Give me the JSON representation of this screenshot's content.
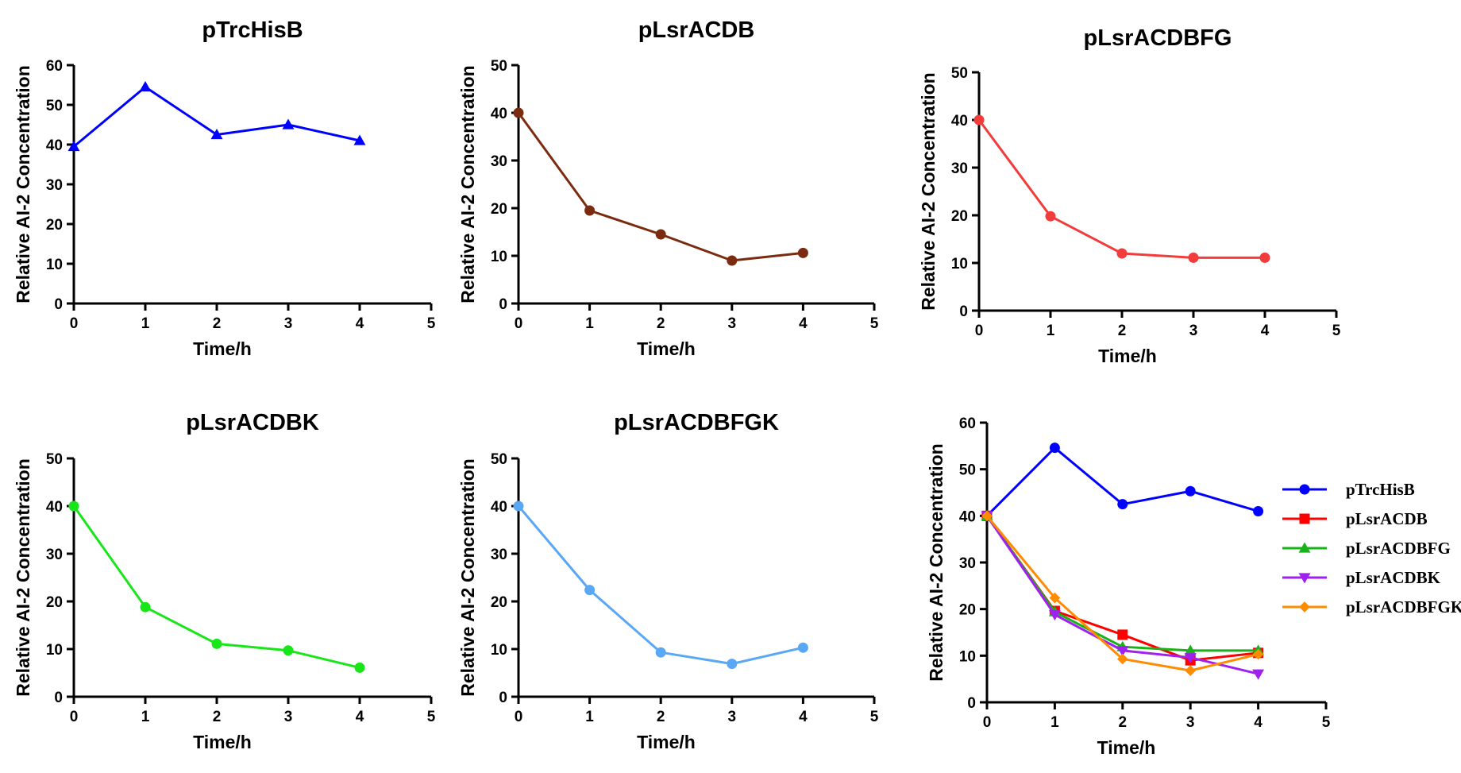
{
  "chart_data": [
    {
      "type": "line",
      "title": "pTrcHisB",
      "xlabel": "Time/h",
      "ylabel": "Relative AI-2 Concentration",
      "xlim": [
        0,
        5
      ],
      "ylim": [
        0,
        60
      ],
      "xticks": [
        "0",
        "1",
        "2",
        "3",
        "4",
        "5"
      ],
      "yticks": [
        "0",
        "10",
        "20",
        "30",
        "40",
        "50",
        "60"
      ],
      "grid": false,
      "series": [
        {
          "x": [
            0,
            1,
            2,
            3,
            4
          ],
          "y": [
            39.5,
            54.5,
            42.5,
            45.0,
            41.0
          ],
          "color": "#0000FF",
          "marker": "triangle-up"
        }
      ]
    },
    {
      "type": "line",
      "title": "pLsrACDB",
      "xlabel": "Time/h",
      "ylabel": "Relative AI-2 Concentration",
      "xlim": [
        0,
        5
      ],
      "ylim": [
        0,
        50
      ],
      "xticks": [
        "0",
        "1",
        "2",
        "3",
        "4",
        "5"
      ],
      "yticks": [
        "0",
        "10",
        "20",
        "30",
        "40",
        "50"
      ],
      "grid": false,
      "series": [
        {
          "x": [
            0,
            1,
            2,
            3,
            4
          ],
          "y": [
            40.0,
            19.5,
            14.5,
            9.0,
            10.6
          ],
          "color": "#7B2C10",
          "marker": "circle"
        }
      ]
    },
    {
      "type": "line",
      "title": "pLsrACDBFG",
      "xlabel": "Time/h",
      "ylabel": "Relative AI-2 Concentration",
      "xlim": [
        0,
        5
      ],
      "ylim": [
        0,
        50
      ],
      "xticks": [
        "0",
        "1",
        "2",
        "3",
        "4",
        "5"
      ],
      "yticks": [
        "0",
        "10",
        "20",
        "30",
        "40",
        "50"
      ],
      "grid": false,
      "series": [
        {
          "x": [
            0,
            1,
            2,
            3,
            4
          ],
          "y": [
            40.0,
            19.8,
            12.0,
            11.1,
            11.1
          ],
          "color": "#F23C3C",
          "marker": "circle"
        }
      ]
    },
    {
      "type": "line",
      "title": "pLsrACDBK",
      "xlabel": "Time/h",
      "ylabel": "Relative AI-2 Concentration",
      "xlim": [
        0,
        5
      ],
      "ylim": [
        0,
        50
      ],
      "xticks": [
        "0",
        "1",
        "2",
        "3",
        "4",
        "5"
      ],
      "yticks": [
        "0",
        "10",
        "20",
        "30",
        "40",
        "50"
      ],
      "grid": false,
      "series": [
        {
          "x": [
            0,
            1,
            2,
            3,
            4
          ],
          "y": [
            40.0,
            18.8,
            11.1,
            9.7,
            6.1
          ],
          "color": "#19E619",
          "marker": "circle"
        }
      ]
    },
    {
      "type": "line",
      "title": "pLsrACDBFGK",
      "xlabel": "Time/h",
      "ylabel": "Relative AI-2 Concentration",
      "xlim": [
        0,
        5
      ],
      "ylim": [
        0,
        50
      ],
      "xticks": [
        "0",
        "1",
        "2",
        "3",
        "4",
        "5"
      ],
      "yticks": [
        "0",
        "10",
        "20",
        "30",
        "40",
        "50"
      ],
      "grid": false,
      "series": [
        {
          "x": [
            0,
            1,
            2,
            3,
            4
          ],
          "y": [
            40.0,
            22.4,
            9.3,
            6.9,
            10.3
          ],
          "color": "#5AA7F5",
          "marker": "circle"
        }
      ]
    },
    {
      "type": "line",
      "title": "",
      "xlabel": "Time/h",
      "ylabel": "Relative AI-2 Concentration",
      "xlim": [
        0,
        5
      ],
      "ylim": [
        0,
        60
      ],
      "xticks": [
        "0",
        "1",
        "2",
        "3",
        "4",
        "5"
      ],
      "yticks": [
        "0",
        "10",
        "20",
        "30",
        "40",
        "50",
        "60"
      ],
      "grid": false,
      "legend": "right",
      "series": [
        {
          "name": "pTrcHisB",
          "x": [
            0,
            1,
            2,
            3,
            4
          ],
          "y": [
            40.0,
            54.6,
            42.5,
            45.3,
            41.0
          ],
          "color": "#0000FF",
          "marker": "circle"
        },
        {
          "name": "pLsrACDB",
          "x": [
            0,
            1,
            2,
            3,
            4
          ],
          "y": [
            40.0,
            19.6,
            14.5,
            9.0,
            10.6
          ],
          "color": "#FF0000",
          "marker": "square"
        },
        {
          "name": "pLsrACDBFG",
          "x": [
            0,
            1,
            2,
            3,
            4
          ],
          "y": [
            40.0,
            19.4,
            11.9,
            11.1,
            11.1
          ],
          "color": "#19B219",
          "marker": "triangle-up"
        },
        {
          "name": "pLsrACDBK",
          "x": [
            0,
            1,
            2,
            3,
            4
          ],
          "y": [
            40.0,
            18.8,
            11.1,
            9.6,
            6.1
          ],
          "color": "#A020F0",
          "marker": "triangle-down"
        },
        {
          "name": "pLsrACDBFGK",
          "x": [
            0,
            1,
            2,
            3,
            4
          ],
          "y": [
            40.0,
            22.4,
            9.3,
            6.8,
            10.3
          ],
          "color": "#FF8C00",
          "marker": "diamond"
        }
      ]
    }
  ]
}
